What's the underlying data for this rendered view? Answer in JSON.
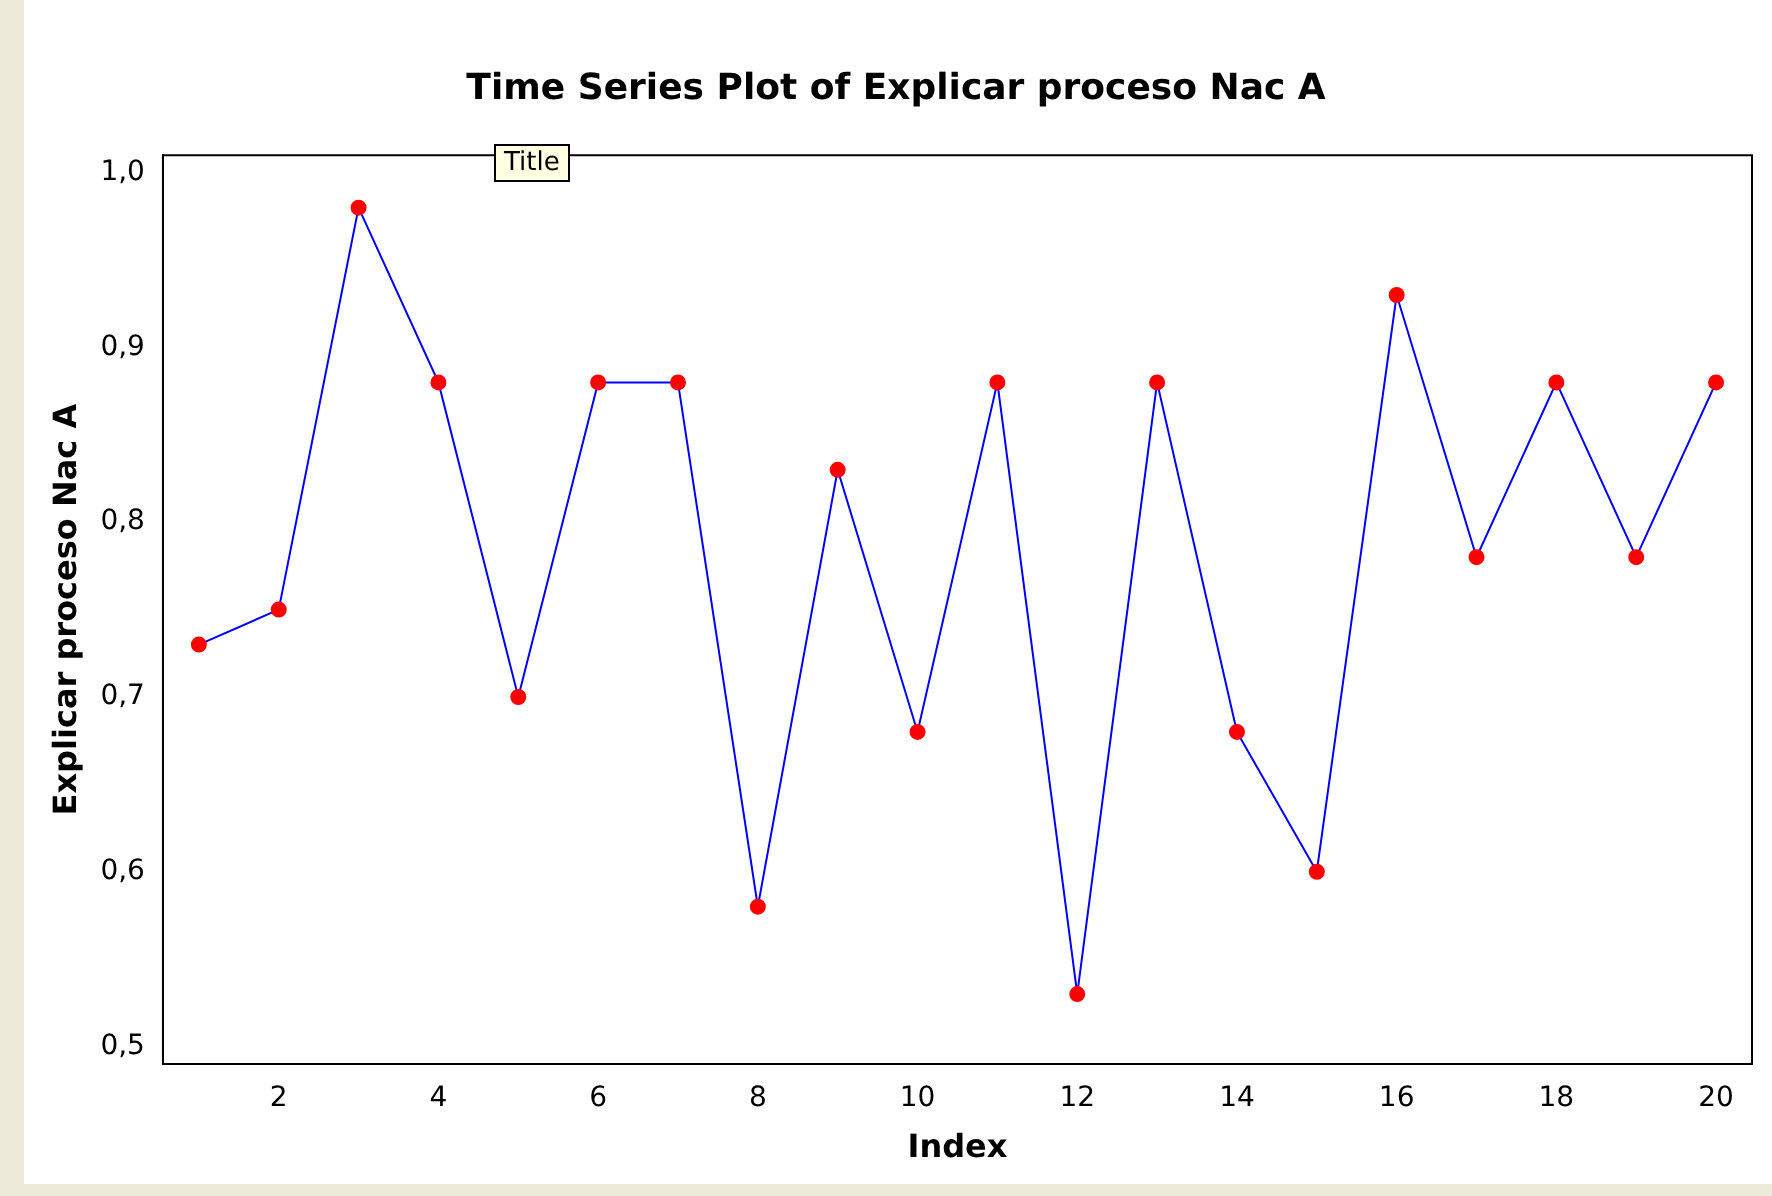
{
  "chart_data": {
    "type": "line",
    "title": "Time Series Plot of Explicar proceso Nac A",
    "xlabel": "Index",
    "ylabel": "Explicar proceso Nac A",
    "annotations": [
      "Title"
    ],
    "x": [
      1,
      2,
      3,
      4,
      5,
      6,
      7,
      8,
      9,
      10,
      11,
      12,
      13,
      14,
      15,
      16,
      17,
      18,
      19,
      20
    ],
    "series": [
      {
        "color": "#0000ff",
        "colors": [
          "#ff0000",
          "#ff0000",
          "#ff0000",
          "#ff0000",
          "#ff0000",
          "#ff0000",
          "#ff0000",
          "#ff0000",
          "#ff0000",
          "#ff0000",
          "#ff0000",
          "#ff0000",
          "#ff0000",
          "#ff0000",
          "#ff0000",
          "#ff0000",
          "#ff0000",
          "#ff0000",
          "#ff0000",
          "#ff0000"
        ],
        "values": [
          0.73,
          0.75,
          0.98,
          0.88,
          0.7,
          0.88,
          0.88,
          0.58,
          0.83,
          0.68,
          0.88,
          0.53,
          0.88,
          0.68,
          0.6,
          0.93,
          0.78,
          0.88,
          0.78,
          0.88
        ]
      }
    ],
    "marker": "circle",
    "grid": false,
    "legend": false,
    "xlim": [
      0.55,
      20.45
    ],
    "xticks": [
      2,
      4,
      6,
      8,
      10,
      12,
      14,
      16,
      18,
      20
    ],
    "ylim": [
      0.49,
      1.01
    ],
    "yticks": [
      {
        "value": 0.5,
        "label": "0,5"
      },
      {
        "value": 0.6,
        "label": "0,6"
      },
      {
        "value": 0.7,
        "label": "0,7"
      },
      {
        "value": 0.8,
        "label": "0,8"
      },
      {
        "value": 0.9,
        "label": "0,9"
      },
      {
        "value": 1.0,
        "label": "1,0"
      }
    ]
  }
}
